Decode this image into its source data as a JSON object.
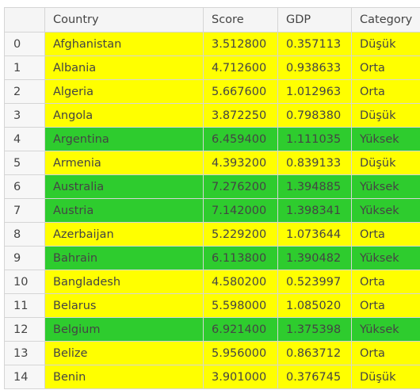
{
  "table": {
    "columns": [
      "",
      "Country",
      "Score",
      "GDP",
      "Category"
    ],
    "colors": {
      "Düşük": "#ffff00",
      "Orta": "#ffff00",
      "Yüksek": "#2ecc2e"
    },
    "rows": [
      {
        "index": "0",
        "country": "Afghanistan",
        "score": "3.512800",
        "gdp": "0.357113",
        "category": "Düşük"
      },
      {
        "index": "1",
        "country": "Albania",
        "score": "4.712600",
        "gdp": "0.938633",
        "category": "Orta"
      },
      {
        "index": "2",
        "country": "Algeria",
        "score": "5.667600",
        "gdp": "1.012963",
        "category": "Orta"
      },
      {
        "index": "3",
        "country": "Angola",
        "score": "3.872250",
        "gdp": "0.798380",
        "category": "Düşük"
      },
      {
        "index": "4",
        "country": "Argentina",
        "score": "6.459400",
        "gdp": "1.111035",
        "category": "Yüksek"
      },
      {
        "index": "5",
        "country": "Armenia",
        "score": "4.393200",
        "gdp": "0.839133",
        "category": "Düşük"
      },
      {
        "index": "6",
        "country": "Australia",
        "score": "7.276200",
        "gdp": "1.394885",
        "category": "Yüksek"
      },
      {
        "index": "7",
        "country": "Austria",
        "score": "7.142000",
        "gdp": "1.398341",
        "category": "Yüksek"
      },
      {
        "index": "8",
        "country": "Azerbaijan",
        "score": "5.229200",
        "gdp": "1.073644",
        "category": "Orta"
      },
      {
        "index": "9",
        "country": "Bahrain",
        "score": "6.113800",
        "gdp": "1.390482",
        "category": "Yüksek"
      },
      {
        "index": "10",
        "country": "Bangladesh",
        "score": "4.580200",
        "gdp": "0.523997",
        "category": "Orta"
      },
      {
        "index": "11",
        "country": "Belarus",
        "score": "5.598000",
        "gdp": "1.085020",
        "category": "Orta"
      },
      {
        "index": "12",
        "country": "Belgium",
        "score": "6.921400",
        "gdp": "1.375398",
        "category": "Yüksek"
      },
      {
        "index": "13",
        "country": "Belize",
        "score": "5.956000",
        "gdp": "0.863712",
        "category": "Orta"
      },
      {
        "index": "14",
        "country": "Benin",
        "score": "3.901000",
        "gdp": "0.376745",
        "category": "Düşük"
      }
    ]
  }
}
